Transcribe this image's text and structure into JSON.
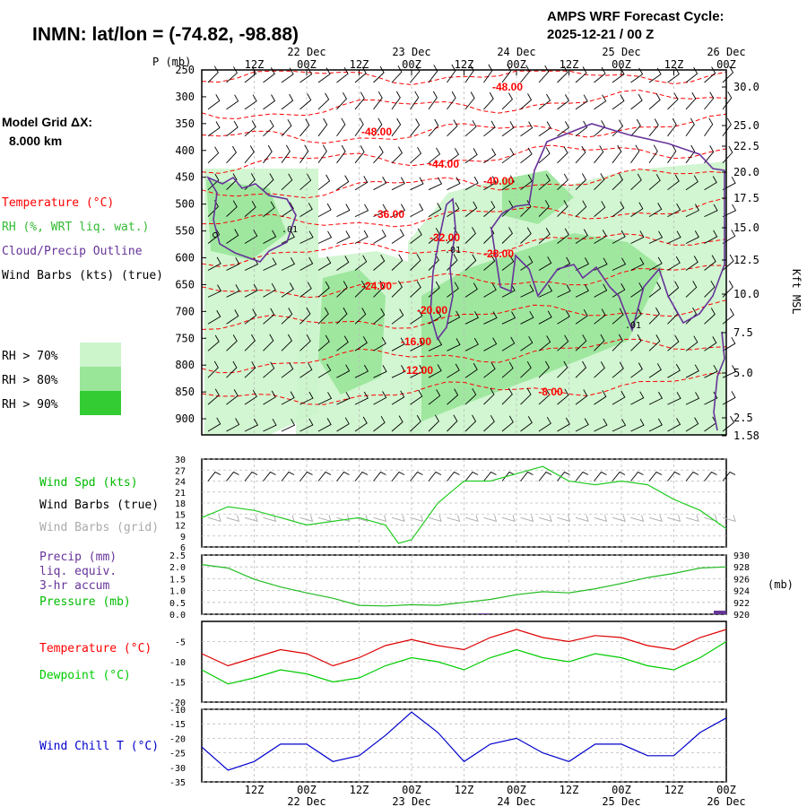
{
  "header": {
    "station": "INMN:  lat/lon = (-74.82, -98.88)",
    "cycle_line1": "AMPS WRF Forecast Cycle:",
    "cycle_line2": "2025-12-21 / 00  Z",
    "grid_line1": "Model Grid ΔX:",
    "grid_line2": "8.000 km"
  },
  "colors": {
    "temperature": "#ff0000",
    "rh": "#33cc33",
    "cloud": "#663399",
    "wind": "#000000",
    "wind_grid": "#aaaaaa",
    "precip": "#663399",
    "pressure": "#00bb00",
    "dewpoint": "#00cc00",
    "windchill": "#0000cc",
    "rh70": "#ccf5cc",
    "rh80": "#99e699",
    "rh90": "#33cc33"
  },
  "time_axis": {
    "hour_labels": [
      "12Z",
      "00Z",
      "12Z",
      "00Z",
      "12Z",
      "00Z",
      "12Z",
      "00Z",
      "12Z",
      "00Z"
    ],
    "day_labels": [
      "22 Dec",
      "23 Dec",
      "24 Dec",
      "25 Dec",
      "26 Dec"
    ]
  },
  "legend": {
    "temperature": "Temperature (°C)",
    "rh": "RH (%, WRT liq. wat.)",
    "cloud": "Cloud/Precip Outline",
    "wind": "Wind Barbs (kts) (true)",
    "rh70": "RH > 70%",
    "rh80": "RH > 80%",
    "rh90": "RH > 90%"
  },
  "chart_data": [
    {
      "type": "area",
      "title": "",
      "ylabel": "P (mb)",
      "y2label": "Kft MSL",
      "y_ticks": [
        "250",
        "300",
        "350",
        "400",
        "450",
        "500",
        "550",
        "600",
        "650",
        "700",
        "750",
        "800",
        "850",
        "900"
      ],
      "y_range": [
        250,
        930
      ],
      "y2_ticks": [
        "30.0",
        "25.0",
        "22.5",
        "20.0",
        "17.5",
        "15.0",
        "12.5",
        "10.0",
        "7.5",
        "5.0",
        "2.5",
        "1.58"
      ],
      "isotherm_labels": [
        "-48.00",
        "-48.00",
        "-44.00",
        "-40.00",
        "-36.00",
        "-32.00",
        "-28.00",
        "-24.00",
        "-20.00",
        "-16.00",
        "-12.00",
        "-8.00"
      ],
      "cloud_labels": [
        ".01",
        ".01",
        ".01"
      ],
      "series": [
        {
          "name": "Temperature (°C)",
          "levels": [
            -48,
            -44,
            -40,
            -36,
            -32,
            -28,
            -24,
            -20,
            -16,
            -12,
            -8
          ]
        }
      ]
    },
    {
      "type": "line",
      "legend": [
        "Wind Spd (kts)",
        "Wind Barbs (true)",
        "Wind Barbs (grid)"
      ],
      "y_ticks": [
        "30",
        "27",
        "24",
        "21",
        "18",
        "15",
        "12",
        "9",
        "6"
      ],
      "ylim": [
        6,
        30
      ],
      "x_hours": [
        0,
        6,
        12,
        18,
        24,
        30,
        36,
        42,
        45,
        48,
        54,
        60,
        66,
        72,
        78,
        84,
        90,
        96,
        102,
        108,
        114,
        120
      ],
      "series": [
        {
          "name": "Wind Spd (kts)",
          "values": [
            14,
            17,
            16,
            14,
            12,
            13,
            14,
            12,
            7,
            8,
            18,
            24,
            24,
            26,
            28,
            24,
            23,
            24,
            23,
            19,
            16,
            11
          ]
        }
      ]
    },
    {
      "type": "line",
      "legend": [
        "Precip (mm)",
        "liq. equiv.",
        "3-hr accum",
        "Pressure (mb)"
      ],
      "y_ticks": [
        "2.5",
        "2.0",
        "1.5",
        "1.0",
        "0.5",
        "0.0"
      ],
      "ylim": [
        0,
        2.5
      ],
      "y2_ticks": [
        "930",
        "928",
        "926",
        "924",
        "922",
        "920"
      ],
      "y2lim": [
        920,
        930
      ],
      "y2label": "(mb)",
      "x_hours": [
        0,
        6,
        12,
        18,
        24,
        30,
        36,
        42,
        48,
        54,
        60,
        66,
        72,
        78,
        84,
        90,
        96,
        102,
        108,
        114,
        120
      ],
      "series": [
        {
          "name": "Pressure (mb)",
          "values": [
            928.4,
            927.8,
            925.9,
            924.6,
            923.6,
            922.7,
            921.5,
            921.4,
            921.6,
            921.5,
            922.0,
            922.5,
            923.3,
            923.8,
            923.6,
            924.3,
            925.2,
            926.2,
            926.9,
            927.8,
            928.0
          ]
        },
        {
          "name": "Precip (mm)",
          "values": [
            0,
            0,
            0,
            0,
            0,
            0,
            0,
            0,
            0,
            0,
            0,
            0.03,
            0,
            0,
            0,
            0,
            0,
            0,
            0,
            0,
            0.15
          ]
        }
      ]
    },
    {
      "type": "line",
      "legend": [
        "Temperature (°C)",
        "Dewpoint (°C)"
      ],
      "y_ticks": [
        "-5",
        "-10",
        "-15",
        "-20"
      ],
      "ylim": [
        -20,
        0
      ],
      "x_hours": [
        0,
        6,
        12,
        18,
        24,
        30,
        36,
        42,
        48,
        54,
        60,
        66,
        72,
        78,
        84,
        90,
        96,
        102,
        108,
        114,
        120
      ],
      "series": [
        {
          "name": "Temperature (°C)",
          "values": [
            -8,
            -11,
            -9,
            -7,
            -8,
            -11,
            -9,
            -6,
            -4.5,
            -6,
            -7,
            -4,
            -2,
            -4,
            -5,
            -3.5,
            -4,
            -6,
            -7,
            -4,
            -2
          ]
        },
        {
          "name": "Dewpoint (°C)",
          "values": [
            -12,
            -15.5,
            -14,
            -12,
            -13,
            -15,
            -14,
            -11,
            -9,
            -10,
            -12,
            -9,
            -7,
            -9,
            -10,
            -8,
            -9,
            -11,
            -12,
            -9,
            -5
          ]
        }
      ]
    },
    {
      "type": "line",
      "legend": [
        "Wind Chill T (°C)"
      ],
      "y_ticks": [
        "-10",
        "-15",
        "-20",
        "-25",
        "-30",
        "-35"
      ],
      "ylim": [
        -35,
        -10
      ],
      "x_hours": [
        0,
        6,
        12,
        18,
        24,
        30,
        36,
        42,
        48,
        54,
        60,
        66,
        72,
        78,
        84,
        90,
        96,
        102,
        108,
        114,
        120
      ],
      "series": [
        {
          "name": "Wind Chill T (°C)",
          "values": [
            -23,
            -31,
            -28,
            -22,
            -22,
            -28,
            -26,
            -19,
            -11,
            -18,
            -28,
            -22,
            -20,
            -25,
            -28,
            -22,
            -22,
            -26,
            -26,
            -18,
            -13
          ]
        }
      ]
    }
  ]
}
